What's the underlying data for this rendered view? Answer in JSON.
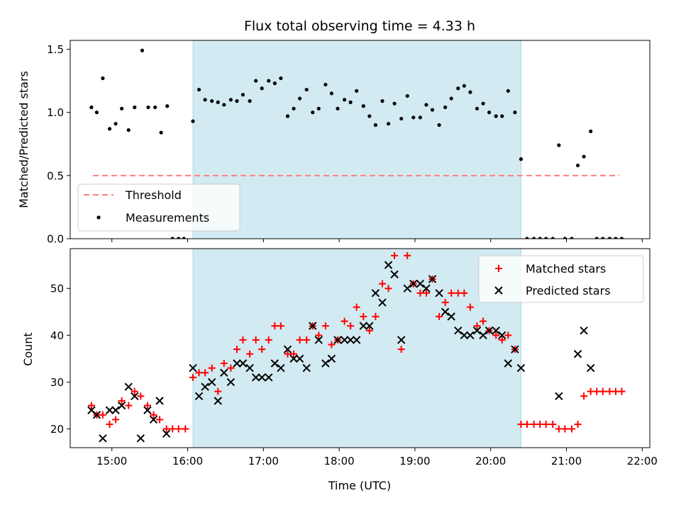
{
  "chart_data": [
    {
      "type": "scatter",
      "title": "Flux total observing time = 4.33 h",
      "ylabel": "Matched/Predicted stars",
      "xlabel": "",
      "xlim": [
        14.45,
        22.1
      ],
      "ylim": [
        0,
        1.57
      ],
      "yticks": [
        "0.0",
        "0.5",
        "1.0",
        "1.5"
      ],
      "ytick_values": [
        0,
        0.5,
        1.0,
        1.5
      ],
      "shaded_span": [
        16.07,
        20.4
      ],
      "shade_color": "#add8e6",
      "legend": {
        "position": "lower-left",
        "entries": [
          "Threshold",
          "Measurements"
        ]
      },
      "threshold": {
        "name": "Threshold",
        "x": [
          14.75,
          21.7
        ],
        "y": 0.5,
        "color": "#ff7f7f"
      },
      "series": [
        {
          "name": "Measurements",
          "color": "#000000",
          "points": [
            [
              14.73,
              1.04
            ],
            [
              14.8,
              1.0
            ],
            [
              14.88,
              1.27
            ],
            [
              14.97,
              0.87
            ],
            [
              15.05,
              0.91
            ],
            [
              15.13,
              1.03
            ],
            [
              15.22,
              0.86
            ],
            [
              15.3,
              1.04
            ],
            [
              15.4,
              1.49
            ],
            [
              15.48,
              1.04
            ],
            [
              15.57,
              1.04
            ],
            [
              15.65,
              0.84
            ],
            [
              15.73,
              1.05
            ],
            [
              15.8,
              0.0
            ],
            [
              15.88,
              0.0
            ],
            [
              15.95,
              0.0
            ],
            [
              16.07,
              0.93
            ],
            [
              16.15,
              1.18
            ],
            [
              16.23,
              1.1
            ],
            [
              16.32,
              1.09
            ],
            [
              16.4,
              1.08
            ],
            [
              16.48,
              1.06
            ],
            [
              16.57,
              1.1
            ],
            [
              16.65,
              1.09
            ],
            [
              16.73,
              1.14
            ],
            [
              16.82,
              1.09
            ],
            [
              16.9,
              1.25
            ],
            [
              16.98,
              1.19
            ],
            [
              17.07,
              1.25
            ],
            [
              17.15,
              1.23
            ],
            [
              17.23,
              1.27
            ],
            [
              17.32,
              0.97
            ],
            [
              17.4,
              1.03
            ],
            [
              17.48,
              1.11
            ],
            [
              17.57,
              1.18
            ],
            [
              17.65,
              1.0
            ],
            [
              17.73,
              1.03
            ],
            [
              17.82,
              1.22
            ],
            [
              17.9,
              1.15
            ],
            [
              17.98,
              1.03
            ],
            [
              18.07,
              1.1
            ],
            [
              18.15,
              1.08
            ],
            [
              18.23,
              1.17
            ],
            [
              18.32,
              1.05
            ],
            [
              18.4,
              0.97
            ],
            [
              18.48,
              0.9
            ],
            [
              18.57,
              1.09
            ],
            [
              18.65,
              0.91
            ],
            [
              18.73,
              1.07
            ],
            [
              18.82,
              0.95
            ],
            [
              18.9,
              1.13
            ],
            [
              18.98,
              0.96
            ],
            [
              19.07,
              0.96
            ],
            [
              19.15,
              1.06
            ],
            [
              19.23,
              1.02
            ],
            [
              19.32,
              0.9
            ],
            [
              19.4,
              1.04
            ],
            [
              19.48,
              1.11
            ],
            [
              19.57,
              1.19
            ],
            [
              19.65,
              1.21
            ],
            [
              19.73,
              1.16
            ],
            [
              19.82,
              1.03
            ],
            [
              19.9,
              1.07
            ],
            [
              19.98,
              1.0
            ],
            [
              20.07,
              0.97
            ],
            [
              20.15,
              0.97
            ],
            [
              20.23,
              1.17
            ],
            [
              20.32,
              1.0
            ],
            [
              20.4,
              0.63
            ],
            [
              20.48,
              0.0
            ],
            [
              20.57,
              0.0
            ],
            [
              20.65,
              0.0
            ],
            [
              20.73,
              0.0
            ],
            [
              20.82,
              0.0
            ],
            [
              20.9,
              0.74
            ],
            [
              20.98,
              0.0
            ],
            [
              21.07,
              0.0
            ],
            [
              21.15,
              0.58
            ],
            [
              21.23,
              0.65
            ],
            [
              21.32,
              0.85
            ],
            [
              21.4,
              0.0
            ],
            [
              21.48,
              0.0
            ],
            [
              21.57,
              0.0
            ],
            [
              21.65,
              0.0
            ],
            [
              21.73,
              0.0
            ]
          ]
        }
      ]
    },
    {
      "type": "scatter",
      "title": "",
      "xlabel": "Time (UTC)",
      "ylabel": "Count",
      "xlim": [
        14.45,
        22.1
      ],
      "ylim": [
        16,
        58.5
      ],
      "xticks": [
        "15:00",
        "16:00",
        "17:00",
        "18:00",
        "19:00",
        "20:00",
        "21:00",
        "22:00"
      ],
      "xtick_values": [
        15,
        16,
        17,
        18,
        19,
        20,
        21,
        22
      ],
      "yticks": [
        "20",
        "30",
        "40",
        "50"
      ],
      "ytick_values": [
        20,
        30,
        40,
        50
      ],
      "shaded_span": [
        16.07,
        20.4
      ],
      "shade_color": "#add8e6",
      "legend": {
        "position": "top-right",
        "entries": [
          "Matched stars",
          "Predicted stars"
        ]
      },
      "series": [
        {
          "name": "Matched stars",
          "marker": "plus",
          "color": "#ff0000",
          "points": [
            [
              14.73,
              25
            ],
            [
              14.8,
              23
            ],
            [
              14.88,
              23
            ],
            [
              14.97,
              21
            ],
            [
              15.05,
              22
            ],
            [
              15.13,
              26
            ],
            [
              15.22,
              25
            ],
            [
              15.3,
              28
            ],
            [
              15.38,
              27
            ],
            [
              15.47,
              25
            ],
            [
              15.55,
              23
            ],
            [
              15.63,
              22
            ],
            [
              15.72,
              20
            ],
            [
              15.8,
              20
            ],
            [
              15.88,
              20
            ],
            [
              15.97,
              20
            ],
            [
              16.07,
              31
            ],
            [
              16.15,
              32
            ],
            [
              16.23,
              32
            ],
            [
              16.32,
              33
            ],
            [
              16.4,
              28
            ],
            [
              16.48,
              34
            ],
            [
              16.57,
              33
            ],
            [
              16.65,
              37
            ],
            [
              16.73,
              39
            ],
            [
              16.82,
              36
            ],
            [
              16.9,
              39
            ],
            [
              16.98,
              37
            ],
            [
              17.07,
              39
            ],
            [
              17.15,
              42
            ],
            [
              17.23,
              42
            ],
            [
              17.32,
              36
            ],
            [
              17.4,
              36
            ],
            [
              17.48,
              39
            ],
            [
              17.57,
              39
            ],
            [
              17.65,
              42
            ],
            [
              17.73,
              40
            ],
            [
              17.82,
              42
            ],
            [
              17.9,
              38
            ],
            [
              17.98,
              39
            ],
            [
              18.07,
              43
            ],
            [
              18.15,
              42
            ],
            [
              18.23,
              46
            ],
            [
              18.32,
              44
            ],
            [
              18.4,
              41
            ],
            [
              18.48,
              44
            ],
            [
              18.57,
              51
            ],
            [
              18.65,
              50
            ],
            [
              18.73,
              57
            ],
            [
              18.82,
              37
            ],
            [
              18.9,
              57
            ],
            [
              18.98,
              51
            ],
            [
              19.07,
              49
            ],
            [
              19.15,
              49
            ],
            [
              19.23,
              52
            ],
            [
              19.32,
              44
            ],
            [
              19.4,
              47
            ],
            [
              19.48,
              49
            ],
            [
              19.57,
              49
            ],
            [
              19.65,
              49
            ],
            [
              19.73,
              46
            ],
            [
              19.82,
              42
            ],
            [
              19.9,
              43
            ],
            [
              19.98,
              41
            ],
            [
              20.07,
              40
            ],
            [
              20.15,
              39
            ],
            [
              20.23,
              40
            ],
            [
              20.32,
              37
            ],
            [
              20.4,
              21
            ],
            [
              20.48,
              21
            ],
            [
              20.57,
              21
            ],
            [
              20.65,
              21
            ],
            [
              20.73,
              21
            ],
            [
              20.82,
              21
            ],
            [
              20.9,
              20
            ],
            [
              20.98,
              20
            ],
            [
              21.07,
              20
            ],
            [
              21.15,
              21
            ],
            [
              21.23,
              27
            ],
            [
              21.32,
              28
            ],
            [
              21.4,
              28
            ],
            [
              21.48,
              28
            ],
            [
              21.57,
              28
            ],
            [
              21.65,
              28
            ],
            [
              21.73,
              28
            ]
          ]
        },
        {
          "name": "Predicted stars",
          "marker": "cross",
          "color": "#000000",
          "points": [
            [
              14.73,
              24
            ],
            [
              14.8,
              23
            ],
            [
              14.88,
              18
            ],
            [
              14.97,
              24
            ],
            [
              15.05,
              24
            ],
            [
              15.13,
              25
            ],
            [
              15.22,
              29
            ],
            [
              15.3,
              27
            ],
            [
              15.38,
              18
            ],
            [
              15.47,
              24
            ],
            [
              15.55,
              22
            ],
            [
              15.63,
              26
            ],
            [
              15.72,
              19
            ],
            [
              16.07,
              33
            ],
            [
              16.15,
              27
            ],
            [
              16.23,
              29
            ],
            [
              16.32,
              30
            ],
            [
              16.4,
              26
            ],
            [
              16.48,
              32
            ],
            [
              16.57,
              30
            ],
            [
              16.65,
              34
            ],
            [
              16.73,
              34
            ],
            [
              16.82,
              33
            ],
            [
              16.9,
              31
            ],
            [
              16.98,
              31
            ],
            [
              17.07,
              31
            ],
            [
              17.15,
              34
            ],
            [
              17.23,
              33
            ],
            [
              17.32,
              37
            ],
            [
              17.4,
              35
            ],
            [
              17.48,
              35
            ],
            [
              17.57,
              33
            ],
            [
              17.65,
              42
            ],
            [
              17.73,
              39
            ],
            [
              17.82,
              34
            ],
            [
              17.9,
              35
            ],
            [
              17.98,
              39
            ],
            [
              18.07,
              39
            ],
            [
              18.15,
              39
            ],
            [
              18.23,
              39
            ],
            [
              18.32,
              42
            ],
            [
              18.4,
              42
            ],
            [
              18.48,
              49
            ],
            [
              18.57,
              47
            ],
            [
              18.65,
              55
            ],
            [
              18.73,
              53
            ],
            [
              18.82,
              39
            ],
            [
              18.9,
              50
            ],
            [
              18.98,
              51
            ],
            [
              19.07,
              51
            ],
            [
              19.15,
              50
            ],
            [
              19.23,
              52
            ],
            [
              19.32,
              49
            ],
            [
              19.4,
              45
            ],
            [
              19.48,
              44
            ],
            [
              19.57,
              41
            ],
            [
              19.65,
              40
            ],
            [
              19.73,
              40
            ],
            [
              19.82,
              41
            ],
            [
              19.9,
              40
            ],
            [
              19.98,
              41
            ],
            [
              20.07,
              41
            ],
            [
              20.15,
              40
            ],
            [
              20.23,
              34
            ],
            [
              20.32,
              37
            ],
            [
              20.4,
              33
            ],
            [
              20.9,
              27
            ],
            [
              21.15,
              36
            ],
            [
              21.23,
              41
            ],
            [
              21.32,
              33
            ]
          ]
        }
      ]
    }
  ]
}
